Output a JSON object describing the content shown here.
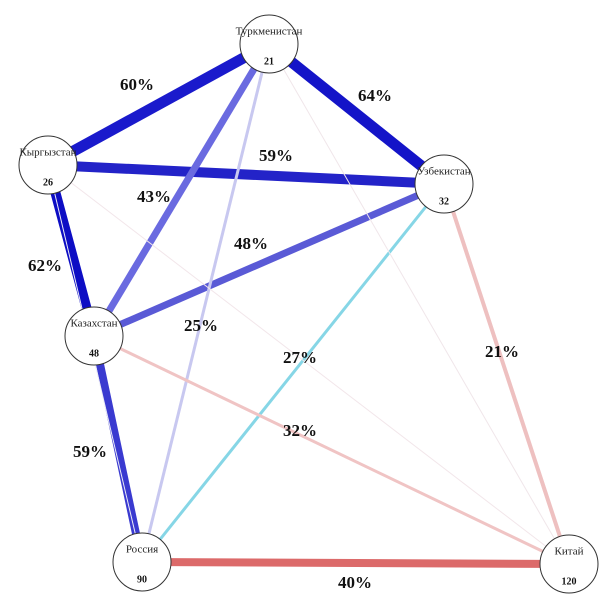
{
  "nodes": [
    {
      "id": "tm",
      "name": "Туркменистан",
      "value": "21"
    },
    {
      "id": "kg",
      "name": "Кыргызстан",
      "value": "26"
    },
    {
      "id": "uz",
      "name": "Узбекистан",
      "value": "32"
    },
    {
      "id": "kz",
      "name": "Казахстан",
      "value": "48"
    },
    {
      "id": "ru",
      "name": "Россия",
      "value": "90"
    },
    {
      "id": "cn",
      "name": "Китай",
      "value": "120"
    }
  ],
  "edges": [
    {
      "from": "kg",
      "to": "tm",
      "label": "60%",
      "color": "#1a1acc"
    },
    {
      "from": "tm",
      "to": "uz",
      "label": "64%",
      "color": "#1414c8"
    },
    {
      "from": "kg",
      "to": "uz",
      "label": "59%",
      "color": "#2323c8"
    },
    {
      "from": "tm",
      "to": "kz",
      "label": "43%",
      "color": "#6a6ae0"
    },
    {
      "from": "kg",
      "to": "kz",
      "label": "62%",
      "color": "#0d0dc4"
    },
    {
      "from": "uz",
      "to": "kz",
      "label": "48%",
      "color": "#5a5ad6"
    },
    {
      "from": "tm",
      "to": "ru",
      "label": "25%",
      "color": "#c8c8f0"
    },
    {
      "from": "kz",
      "to": "ru",
      "label": "59%",
      "color": "#3a3ad0"
    },
    {
      "from": "uz",
      "to": "ru",
      "label": "27%",
      "color": "#86d6e6"
    },
    {
      "from": "kz",
      "to": "cn",
      "label": "32%",
      "color": "#f0c4c4"
    },
    {
      "from": "uz",
      "to": "cn",
      "label": "21%",
      "color": "#eec0c0"
    },
    {
      "from": "ru",
      "to": "cn",
      "label": "40%",
      "color": "#dc6a6a"
    },
    {
      "from": "tm",
      "to": "cn",
      "label": "",
      "color": "#f0e6ea"
    },
    {
      "from": "kg",
      "to": "cn",
      "label": "",
      "color": "#f2e6ea"
    },
    {
      "from": "kg",
      "to": "ru",
      "label": "",
      "color": "#ececf6"
    }
  ]
}
